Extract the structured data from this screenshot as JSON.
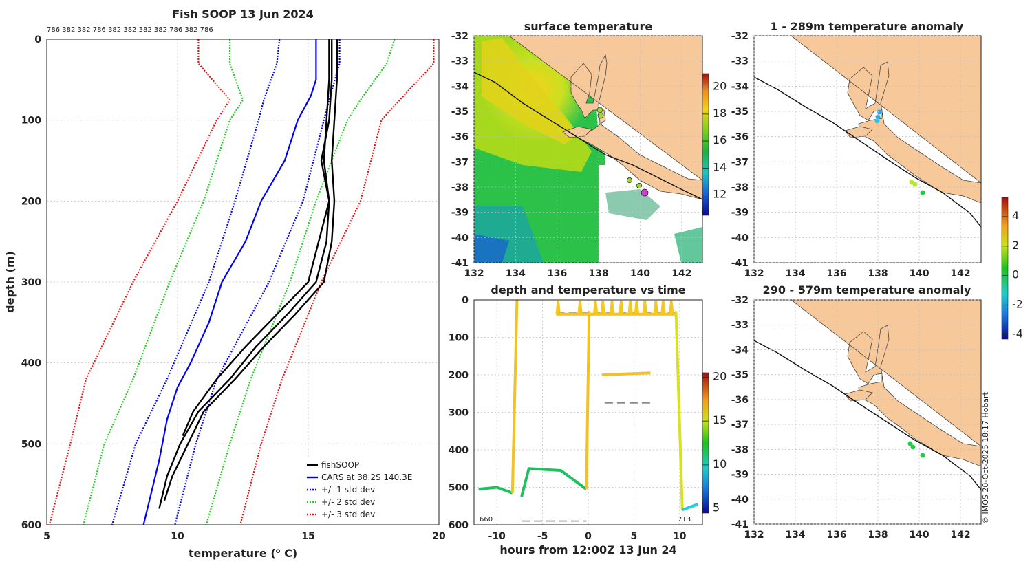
{
  "page": {
    "credit": "© IMOS 20-Oct-2025 18:17 Hobart"
  },
  "chart_data": [
    {
      "type": "line",
      "id": "profile",
      "title": "Fish SOOP 13 Jun 2024",
      "cast_ids": "786 382 382 786 382 382 382 382 786 382 786",
      "xlabel": "temperature (o C)",
      "ylabel": "depth (m)",
      "xlim": [
        5,
        20
      ],
      "ylim": [
        600,
        0
      ],
      "xticks": [
        5,
        10,
        15,
        20
      ],
      "yticks": [
        0,
        100,
        200,
        300,
        400,
        500,
        600
      ],
      "legend": [
        {
          "label": "fishSOOP",
          "color": "#000000",
          "style": "solid"
        },
        {
          "label": "CARS at 38.2S 140.3E",
          "color": "#0000ff",
          "style": "solid"
        },
        {
          "label": "+/- 1 std dev",
          "color": "#0000ff",
          "style": "dotted"
        },
        {
          "label": "+/- 2 std dev",
          "color": "#22cc22",
          "style": "dotted"
        },
        {
          "label": "+/- 3 std dev",
          "color": "#ee1111",
          "style": "dotted"
        }
      ],
      "series": [
        {
          "name": "CARS mean",
          "depth": [
            0,
            50,
            70,
            100,
            150,
            200,
            250,
            300,
            350,
            400,
            430,
            470,
            520,
            600
          ],
          "temp": [
            15.3,
            15.3,
            15.1,
            14.6,
            14.1,
            13.2,
            12.6,
            11.7,
            11.2,
            10.5,
            10.0,
            9.6,
            9.3,
            8.7
          ]
        },
        {
          "name": "-1 std",
          "depth": [
            0,
            30,
            75,
            100,
            200,
            300,
            420,
            500,
            600
          ],
          "temp": [
            13.9,
            13.8,
            13.3,
            13.1,
            12.2,
            11.2,
            9.6,
            8.4,
            7.5
          ]
        },
        {
          "name": "+1 std",
          "depth": [
            0,
            30,
            75,
            100,
            200,
            300,
            420,
            500,
            600
          ],
          "temp": [
            16.2,
            16.2,
            15.8,
            15.6,
            14.8,
            13.5,
            11.5,
            10.7,
            9.9
          ]
        },
        {
          "name": "-2 std",
          "depth": [
            0,
            30,
            75,
            100,
            200,
            300,
            420,
            500,
            600
          ],
          "temp": [
            12.0,
            12.0,
            12.5,
            12.0,
            11.0,
            9.7,
            8.3,
            7.2,
            6.4
          ]
        },
        {
          "name": "+2 std",
          "depth": [
            0,
            30,
            75,
            100,
            200,
            300,
            420,
            500,
            600
          ],
          "temp": [
            18.3,
            18.0,
            17.0,
            16.5,
            15.3,
            14.3,
            12.8,
            12.0,
            11.1
          ]
        },
        {
          "name": "-3 std",
          "depth": [
            0,
            30,
            75,
            100,
            200,
            300,
            420,
            500,
            600
          ],
          "temp": [
            10.8,
            10.8,
            12.0,
            11.5,
            10.0,
            8.3,
            6.5,
            5.9,
            5.1
          ]
        },
        {
          "name": "+3 std",
          "depth": [
            0,
            30,
            75,
            100,
            200,
            300,
            420,
            500,
            600
          ],
          "temp": [
            19.8,
            19.8,
            18.5,
            17.8,
            17.0,
            15.5,
            14.0,
            13.2,
            12.4
          ]
        },
        {
          "name": "fishSOOP A",
          "depth": [
            0,
            50,
            100,
            150,
            200,
            250,
            300,
            340,
            380,
            420,
            460,
            500,
            540,
            580
          ],
          "temp": [
            15.8,
            15.8,
            15.7,
            15.6,
            15.8,
            15.7,
            15.3,
            14.2,
            13.0,
            12.0,
            10.8,
            10.1,
            9.6,
            9.3
          ]
        },
        {
          "name": "fishSOOP B",
          "depth": [
            0,
            50,
            100,
            150,
            200,
            250,
            300,
            340,
            380,
            420,
            460,
            500,
            540,
            570
          ],
          "temp": [
            16.1,
            16.1,
            16.0,
            15.9,
            16.0,
            15.9,
            15.6,
            14.5,
            13.3,
            12.2,
            11.0,
            10.4,
            9.8,
            9.5
          ]
        },
        {
          "name": "fishSOOP C",
          "depth": [
            0,
            50,
            100,
            150,
            200,
            250,
            300,
            340,
            380,
            420,
            460,
            490
          ],
          "temp": [
            15.9,
            15.9,
            15.8,
            15.5,
            15.8,
            15.4,
            15.0,
            13.8,
            12.6,
            11.5,
            10.6,
            10.2
          ]
        }
      ]
    },
    {
      "type": "heatmap",
      "id": "sst_map",
      "title": "surface temperature",
      "xticks": [
        132,
        134,
        136,
        138,
        140,
        142
      ],
      "yticks": [
        -32,
        -33,
        -34,
        -35,
        -36,
        -37,
        -38,
        -39,
        -40,
        -41
      ],
      "colorbar_ticks": [
        12,
        14,
        16,
        18,
        20
      ]
    },
    {
      "type": "line",
      "id": "depth_time",
      "title": "depth and temperature vs time",
      "xlabel": "hours from 12:00Z 13 Jun 24",
      "xlim": [
        -12.5,
        12.5
      ],
      "ylim": [
        600,
        0
      ],
      "xticks": [
        -10,
        -5,
        0,
        5,
        10
      ],
      "yticks": [
        0,
        100,
        200,
        300,
        400,
        500,
        600
      ],
      "colorbar_ticks": [
        5,
        10,
        15,
        20
      ],
      "start_label": "660",
      "end_label": "713",
      "segments": [
        {
          "hours": [
            -12,
            -10,
            -8.3
          ],
          "depth": [
            505,
            500,
            515
          ],
          "temp": 11
        },
        {
          "hours": [
            -8.3,
            -7.8
          ],
          "depth": [
            515,
            0
          ],
          "temp": 16
        },
        {
          "hours": [
            -7.3,
            -6.5,
            -3,
            -0.2
          ],
          "depth": [
            525,
            450,
            455,
            505
          ],
          "temp": 11
        },
        {
          "hours": [
            -0.2,
            0.1
          ],
          "depth": [
            505,
            30
          ],
          "temp": 16
        },
        {
          "hours": [
            -3.5,
            9.5
          ],
          "depth": [
            38,
            38
          ],
          "temp": 17
        },
        {
          "hours": [
            1.5,
            6.8
          ],
          "depth": [
            200,
            195
          ],
          "temp": 17
        },
        {
          "hours": [
            9.6,
            10.3
          ],
          "depth": [
            30,
            560
          ],
          "temp": 15
        },
        {
          "hours": [
            10.3,
            12
          ],
          "depth": [
            560,
            545
          ],
          "temp": 8
        }
      ],
      "reference_lines": [
        {
          "hours": [
            -7.3,
            -0.2
          ],
          "depth": 590
        },
        {
          "hours": [
            1.8,
            6.8
          ],
          "depth": 275
        },
        {
          "hours": [
            -3.5,
            9.5
          ],
          "depth": 35
        }
      ]
    },
    {
      "type": "heatmap",
      "id": "anom_upper",
      "title": "1 - 289m temperature anomaly",
      "xticks": [
        132,
        134,
        136,
        138,
        140,
        142
      ],
      "yticks": [
        -32,
        -33,
        -34,
        -35,
        -36,
        -37,
        -38,
        -39,
        -40,
        -41
      ],
      "colorbar_ticks": [
        4,
        2,
        0,
        -2,
        -4
      ]
    },
    {
      "type": "heatmap",
      "id": "anom_lower",
      "title": "290 - 579m temperature anomaly",
      "xticks": [
        132,
        134,
        136,
        138,
        140,
        142
      ],
      "yticks": [
        -32,
        -33,
        -34,
        -35,
        -36,
        -37,
        -38,
        -39,
        -40,
        -41
      ]
    }
  ]
}
